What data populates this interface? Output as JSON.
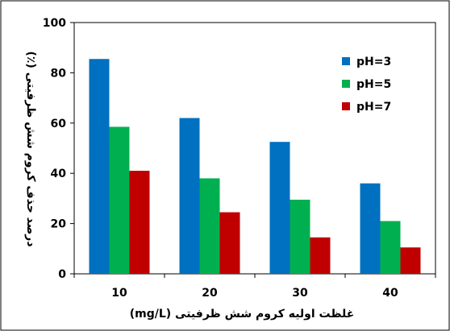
{
  "chart_data": {
    "type": "bar",
    "categories": [
      "10",
      "20",
      "30",
      "40"
    ],
    "series": [
      {
        "name": "pH=3",
        "color": "#0070C0",
        "values": [
          85.5,
          62,
          52.5,
          36
        ]
      },
      {
        "name": "pH=5",
        "color": "#00B050",
        "values": [
          58.5,
          38,
          29.5,
          21
        ]
      },
      {
        "name": "pH=7",
        "color": "#C00000",
        "values": [
          41,
          24.5,
          14.5,
          10.5
        ]
      }
    ],
    "ylim": [
      0,
      100
    ],
    "yticks": [
      0,
      20,
      40,
      60,
      80,
      100
    ],
    "xlabel": "غلظت اولیه کروم شش ظرفیتی (mg/L)",
    "ylabel": "درصد حذف کروم شش ظرفیتی (٪)",
    "legend_position": "top-right",
    "grid": false
  }
}
